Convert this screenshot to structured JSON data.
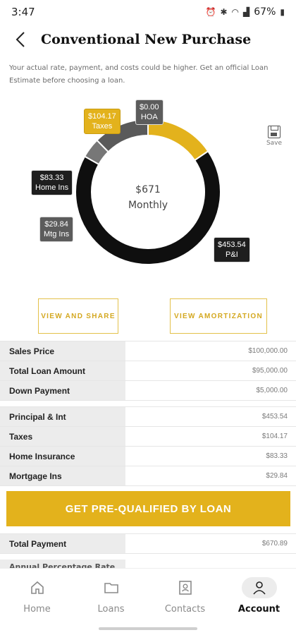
{
  "status_bar": {
    "time": "3:47",
    "battery": "67%"
  },
  "header": {
    "title": "Conventional New Purchase"
  },
  "disclaimer": "Your actual rate, payment, and costs could be higher. Get an official Loan Estimate before choosing a loan.",
  "chart": {
    "center_amount": "$671",
    "center_label": "Monthly",
    "segments": [
      {
        "name": "Taxes",
        "amount": "$104.17",
        "value": 104.17,
        "color": "#e3b21c"
      },
      {
        "name": "HOA",
        "amount": "$0.00",
        "value": 0.0,
        "color": "#5c5c5c"
      },
      {
        "name": "P&I",
        "amount": "$453.54",
        "value": 453.54,
        "color": "#0f0f0f"
      },
      {
        "name": "Mtg Ins",
        "amount": "$29.84",
        "value": 29.84,
        "color": "#777777"
      },
      {
        "name": "Home Ins",
        "amount": "$83.33",
        "value": 83.33,
        "color": "#5a5a5a"
      }
    ]
  },
  "save_label": "Save",
  "buttons": {
    "view_share": "VIEW AND SHARE",
    "view_amortization": "VIEW AMORTIZATION"
  },
  "loan_table": [
    {
      "label": "Sales Price",
      "value": "$100,000.00"
    },
    {
      "label": "Total Loan Amount",
      "value": "$95,000.00"
    },
    {
      "label": "Down Payment",
      "value": "$5,000.00"
    }
  ],
  "payment_table": [
    {
      "label": "Principal & Int",
      "value": "$453.54"
    },
    {
      "label": "Taxes",
      "value": "$104.17"
    },
    {
      "label": "Home Insurance",
      "value": "$83.33"
    },
    {
      "label": "Mortgage Ins",
      "value": "$29.84"
    }
  ],
  "cta_label": "GET PRE-QUALIFIED BY LOAN",
  "total_row": {
    "label": "Total Payment",
    "value": "$670.89"
  },
  "partial_row_label": "Annual Percentage Rate",
  "nav": [
    {
      "label": "Home",
      "icon": "home-icon"
    },
    {
      "label": "Loans",
      "icon": "folder-icon"
    },
    {
      "label": "Contacts",
      "icon": "contact-card-icon"
    },
    {
      "label": "Account",
      "icon": "person-icon"
    }
  ]
}
